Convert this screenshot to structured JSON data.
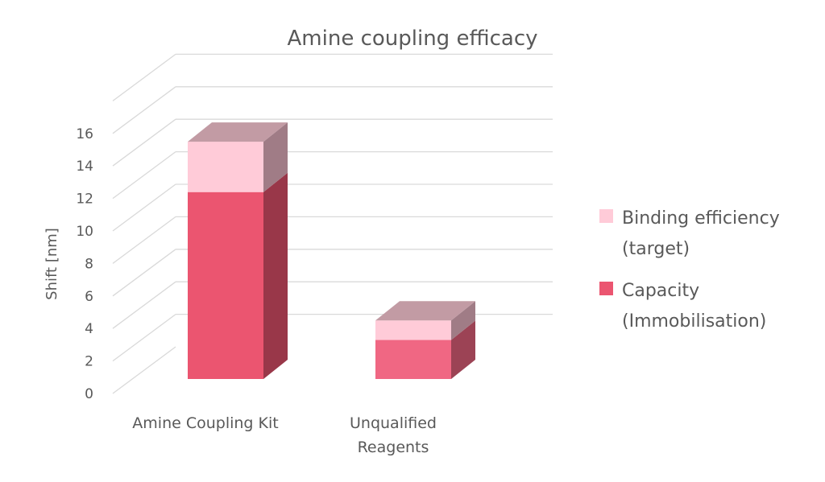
{
  "chart_data": {
    "type": "bar",
    "stacked": true,
    "style": "3d",
    "title": "Amine coupling efficacy",
    "xlabel": "",
    "ylabel": "Shift [nm]",
    "ylim": [
      0,
      16
    ],
    "ytick_step": 2,
    "yticks": [
      "0",
      "2",
      "4",
      "6",
      "8",
      "10",
      "12",
      "14",
      "16"
    ],
    "grid": true,
    "legend_position": "right",
    "categories": [
      "Amine Coupling Kit",
      "Unqualified Reagents"
    ],
    "category_lines": [
      [
        "Amine Coupling Kit"
      ],
      [
        "Unqualified",
        "Reagents"
      ]
    ],
    "series": [
      {
        "name": "Capacity (Immobilisation)",
        "legend_lines": [
          "Capacity",
          "(Immobilisation)"
        ],
        "values": [
          11.5,
          2.4
        ],
        "colors": [
          "#eb5570",
          "#f06783"
        ]
      },
      {
        "name": "Binding efficiency (target)",
        "legend_lines": [
          "Binding efficiency",
          "(target)"
        ],
        "values": [
          3.1,
          1.2
        ],
        "colors": [
          "#ffcbd8",
          "#ffcbd8"
        ]
      }
    ],
    "legend_order": [
      1,
      0
    ]
  }
}
